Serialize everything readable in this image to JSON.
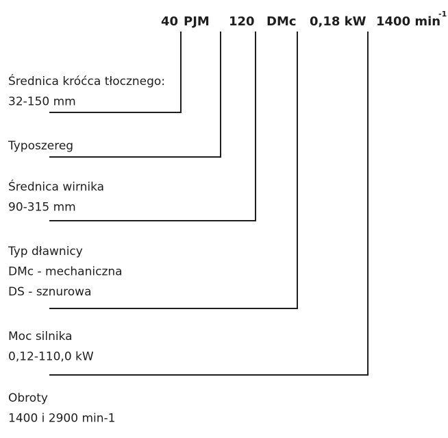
{
  "header": {
    "codes": [
      "40",
      "PJM",
      "120",
      "DMc",
      "0,18 kW",
      "1400 min"
    ],
    "superscript": "-1"
  },
  "groups": [
    {
      "lines": [
        "Średnica króćca tłocznego:",
        "32-150 mm"
      ]
    },
    {
      "lines": [
        "Typoszereg"
      ]
    },
    {
      "lines": [
        "Średnica wirnika",
        "90-315 mm"
      ]
    },
    {
      "lines": [
        "Typ dławnicy",
        "DMc - mechaniczna",
        "DS - sznurowa"
      ]
    },
    {
      "lines": [
        "Moc silnika",
        "0,12-110,0 kW"
      ]
    },
    {
      "lines": [
        "Obroty",
        "1400 i 2900 min-1"
      ]
    }
  ]
}
